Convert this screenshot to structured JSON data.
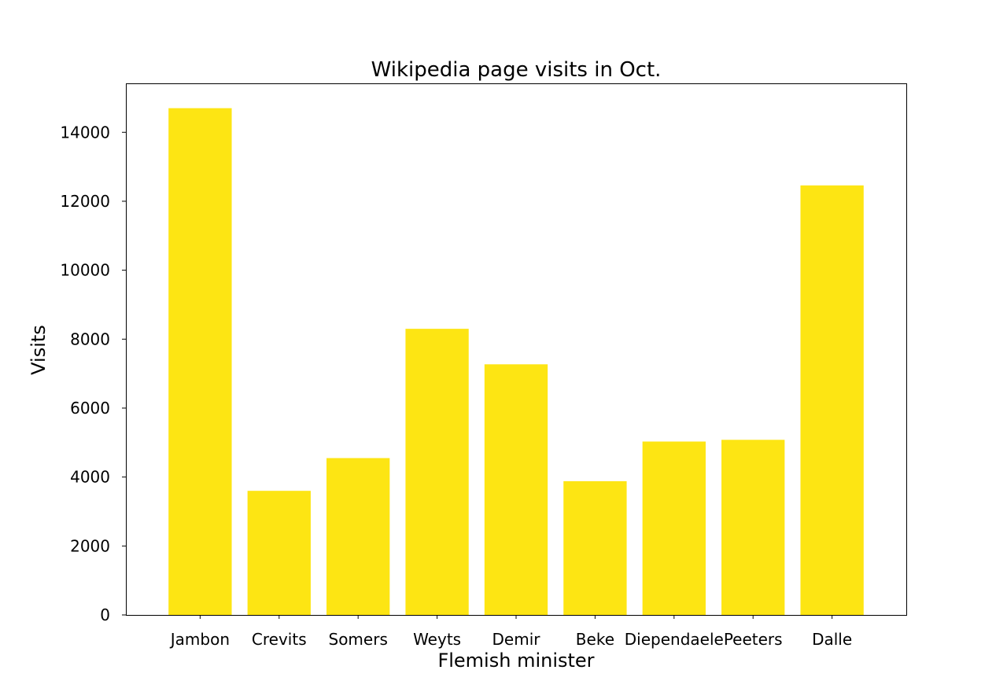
{
  "chart_data": {
    "type": "bar",
    "title": "Wikipedia page visits in Oct.",
    "xlabel": "Flemish minister",
    "ylabel": "Visits",
    "categories": [
      "Jambon",
      "Crevits",
      "Somers",
      "Weyts",
      "Demir",
      "Beke",
      "Diependaele",
      "Peeters",
      "Dalle"
    ],
    "values": [
      14700,
      3600,
      4550,
      8300,
      7270,
      3880,
      5030,
      5080,
      12460
    ],
    "bar_color": "#fde513",
    "ylim": [
      0,
      15420
    ],
    "yticks": [
      0,
      2000,
      4000,
      6000,
      8000,
      10000,
      12000,
      14000
    ],
    "ytick_labels": [
      "0",
      "2000",
      "4000",
      "6000",
      "8000",
      "10000",
      "12000",
      "14000"
    ],
    "grid": false,
    "legend": "none"
  }
}
